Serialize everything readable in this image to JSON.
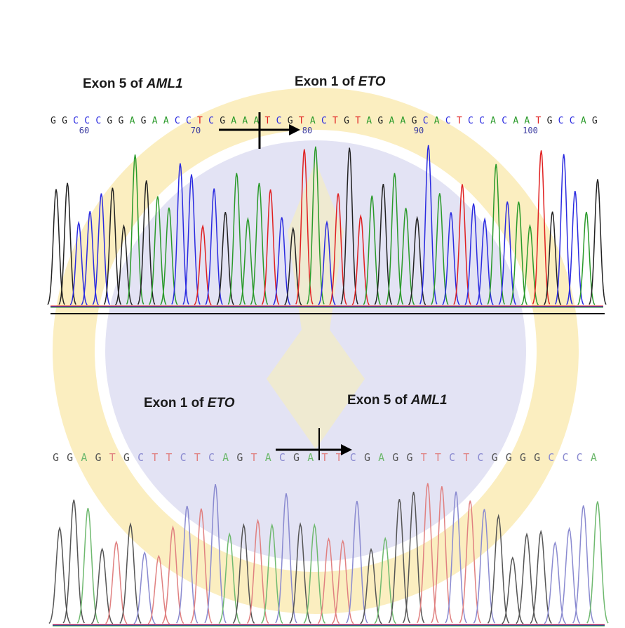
{
  "top": {
    "label_left": {
      "prefix": "Exon 5 of ",
      "gene": "AML1"
    },
    "label_right": {
      "prefix": "Exon 1 of ",
      "gene": "ETO"
    },
    "bases": [
      "G",
      "G",
      "C",
      "C",
      "C",
      "G",
      "G",
      "A",
      "G",
      "A",
      "A",
      "C",
      "C",
      "T",
      "C",
      "G",
      "A",
      "A",
      "A",
      "T",
      "C",
      "G",
      "T",
      "A",
      "C",
      "T",
      "G",
      "T",
      "A",
      "G",
      "A",
      "A",
      "G",
      "C",
      "A",
      "C",
      "T",
      "C",
      "C",
      "A",
      "C",
      "A",
      "A",
      "T",
      "G",
      "C",
      "C",
      "A",
      "G"
    ],
    "positions": [
      60,
      70,
      80,
      90,
      100
    ]
  },
  "bottom": {
    "label_left": {
      "prefix": "Exon 1 of ",
      "gene": "ETO"
    },
    "label_right": {
      "prefix": "Exon 5 of ",
      "gene": "AML1"
    },
    "bases": [
      "G",
      "G",
      "A",
      "G",
      "T",
      "G",
      "C",
      "T",
      "T",
      "C",
      "T",
      "C",
      "A",
      "G",
      "T",
      "A",
      "C",
      "G",
      "A",
      "T",
      "T",
      "C",
      "G",
      "A",
      "G",
      "G",
      "T",
      "T",
      "C",
      "T",
      "C",
      "G",
      "G",
      "G",
      "G",
      "C",
      "C",
      "C",
      "A"
    ]
  }
}
